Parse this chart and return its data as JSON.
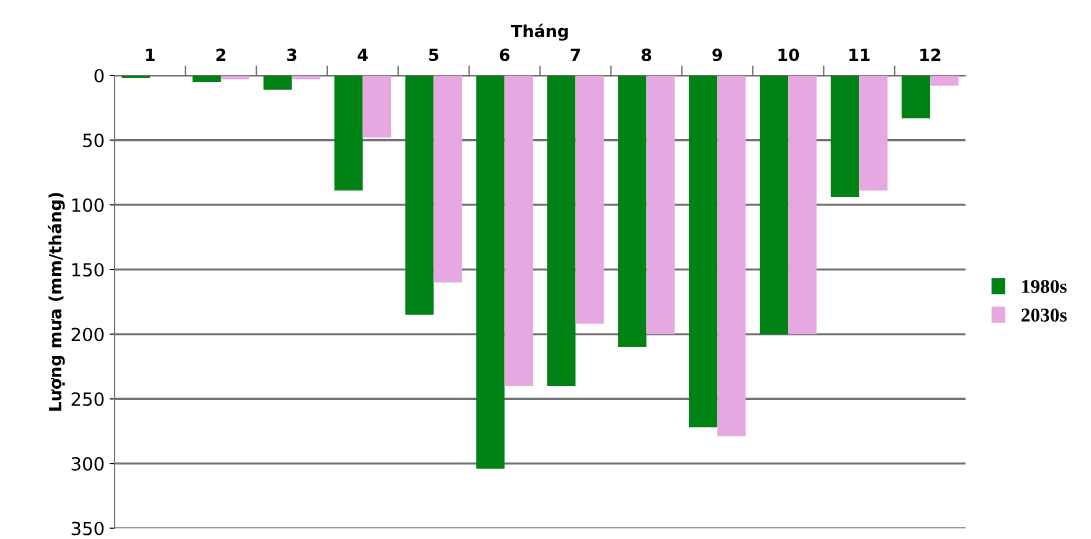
{
  "chart_data": {
    "type": "bar",
    "xlabel": "Tháng",
    "ylabel": "Lượng mưa (mm/tháng)",
    "categories": [
      "1",
      "2",
      "3",
      "4",
      "5",
      "6",
      "7",
      "8",
      "9",
      "10",
      "11",
      "12"
    ],
    "series": [
      {
        "name": "1980s",
        "color": "#008214",
        "values": [
          2,
          5,
          11,
          89,
          185,
          304,
          240,
          210,
          272,
          200,
          94,
          33
        ]
      },
      {
        "name": "2030s",
        "color": "#e6a8e0",
        "values": [
          null,
          3,
          3,
          48,
          160,
          240,
          192,
          200,
          279,
          200,
          89,
          8
        ]
      }
    ],
    "ylim": [
      350,
      0
    ],
    "yticks": [
      0,
      50,
      100,
      150,
      200,
      250,
      300,
      350
    ],
    "grid": "y",
    "legend": "right"
  }
}
